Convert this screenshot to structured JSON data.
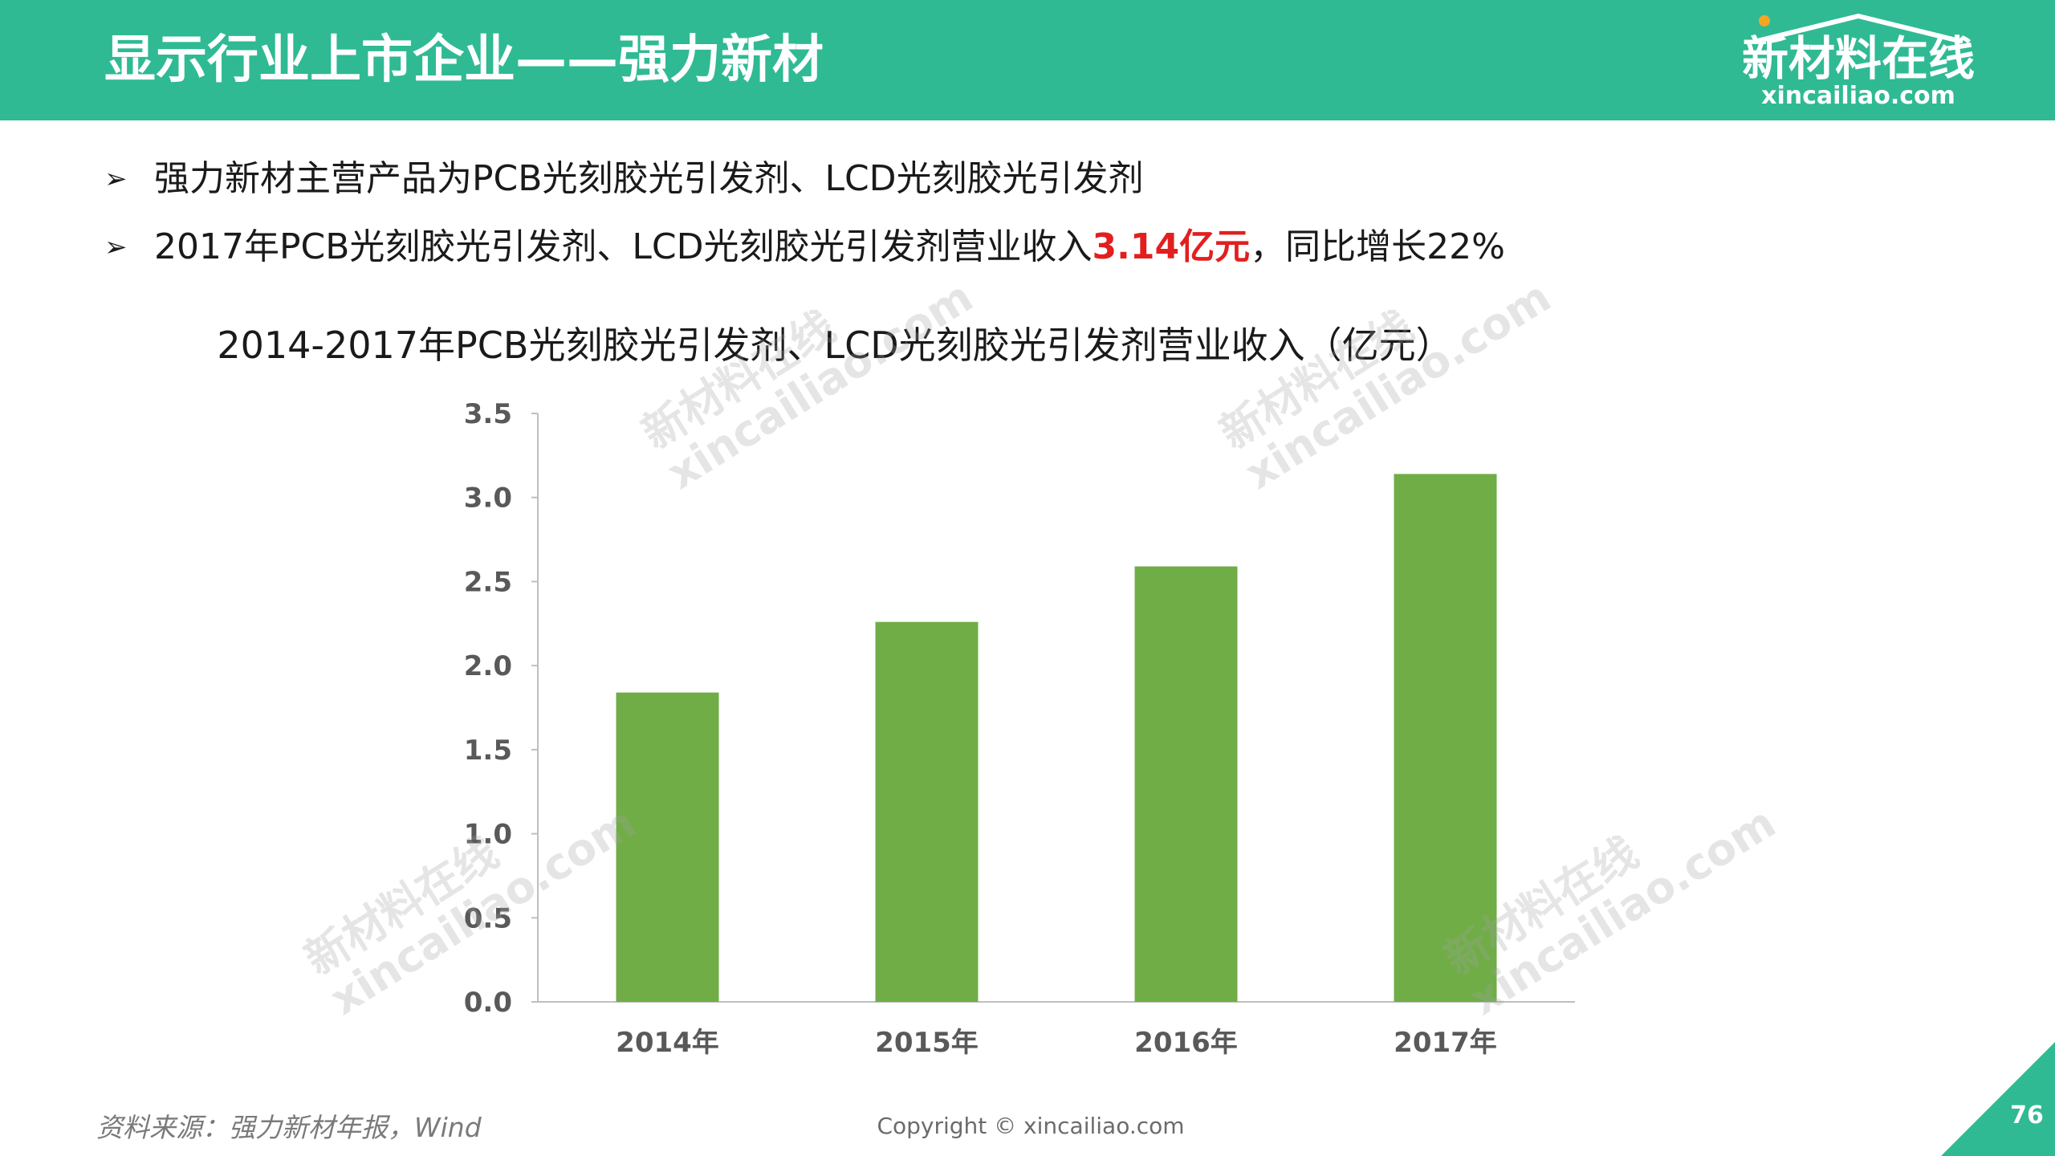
{
  "header": {
    "title": "显示行业上市企业——强力新材",
    "logo_cn": "新材料在线",
    "logo_en": "xincailiao.com"
  },
  "bullets": [
    {
      "text": "强力新材主营产品为PCB光刻胶光引发剂、LCD光刻胶光引发剂"
    },
    {
      "text_before": "2017年PCB光刻胶光引发剂、LCD光刻胶光引发剂营业收入",
      "highlight": "3.14亿元",
      "text_after": "，同比增长22%"
    }
  ],
  "bullet_marker": "➢",
  "watermark": {
    "line1": "新材料在线",
    "line2": "xincailiao.com"
  },
  "colors": {
    "header": "#2fba94",
    "bar": "#70ad47",
    "highlight": "#e21f1f"
  },
  "chart_data": {
    "type": "bar",
    "title": "2014-2017年PCB光刻胶光引发剂、LCD光刻胶光引发剂营业收入（亿元）",
    "categories": [
      "2014年",
      "2015年",
      "2016年",
      "2017年"
    ],
    "values": [
      1.84,
      2.26,
      2.59,
      3.14
    ],
    "ylim": [
      0,
      3.5
    ],
    "yticks": [
      "0.0",
      "0.5",
      "1.0",
      "1.5",
      "2.0",
      "2.5",
      "3.0",
      "3.5"
    ],
    "xlabel": "",
    "ylabel": "",
    "grid": false,
    "legend": false
  },
  "footer": {
    "source": "资料来源：强力新材年报，Wind",
    "copyright": "Copyright © xincailiao.com",
    "page": "76"
  }
}
